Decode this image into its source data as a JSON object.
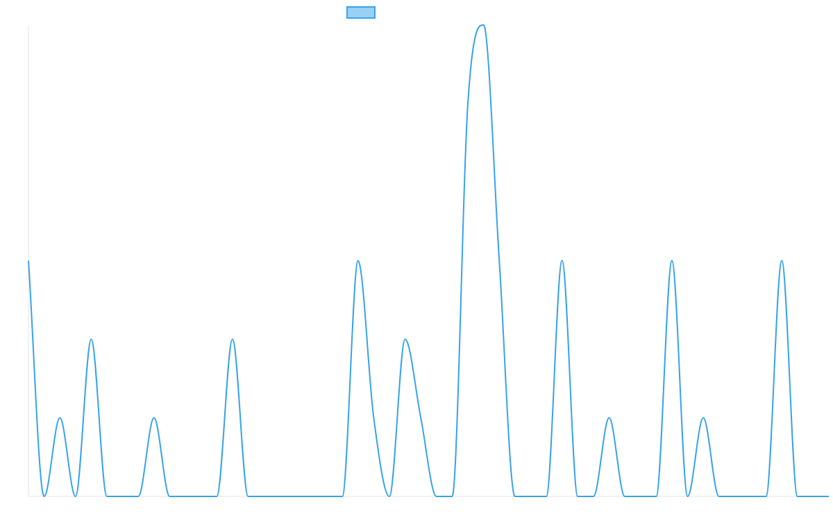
{
  "chart_data": {
    "type": "line",
    "title": "",
    "xlabel": "",
    "ylabel": "",
    "legend": {
      "placement": "top-center",
      "entries": [
        {
          "name": "",
          "color": "#36a2eb",
          "fill": "#9ad0f5"
        }
      ]
    },
    "grid": false,
    "xlim": [
      0,
      51
    ],
    "ylim": [
      0,
      6
    ],
    "series": [
      {
        "name": "",
        "color": "#36a2eb",
        "x": [
          0,
          1,
          2,
          3,
          4,
          5,
          6,
          7,
          8,
          9,
          10,
          11,
          12,
          13,
          14,
          15,
          16,
          17,
          18,
          19,
          20,
          21,
          22,
          23,
          24,
          25,
          26,
          27,
          28,
          29,
          30,
          31,
          32,
          33,
          34,
          35,
          36,
          37,
          38,
          39,
          40,
          41,
          42,
          43,
          44,
          45,
          46,
          47,
          48,
          49,
          50,
          51
        ],
        "values": [
          3,
          0,
          1,
          0,
          2,
          0,
          0,
          0,
          1,
          0,
          0,
          0,
          0,
          2,
          0,
          0,
          0,
          0,
          0,
          0,
          0,
          3,
          1,
          0,
          2,
          1,
          0,
          0,
          5,
          6,
          3,
          0,
          0,
          0,
          3,
          0,
          0,
          1,
          0,
          0,
          0,
          3,
          0,
          1,
          0,
          0,
          0,
          0,
          3,
          0,
          0,
          0
        ]
      }
    ]
  }
}
